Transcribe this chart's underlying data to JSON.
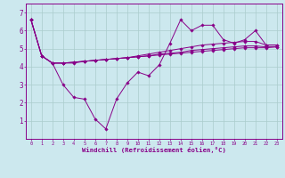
{
  "xlabel": "Windchill (Refroidissement éolien,°C)",
  "x": [
    0,
    1,
    2,
    3,
    4,
    5,
    6,
    7,
    8,
    9,
    10,
    11,
    12,
    13,
    14,
    15,
    16,
    17,
    18,
    19,
    20,
    21,
    22,
    23
  ],
  "line1": [
    6.6,
    4.6,
    4.2,
    3.0,
    2.3,
    2.2,
    1.1,
    0.55,
    2.2,
    3.1,
    3.7,
    3.5,
    4.1,
    5.3,
    6.6,
    6.0,
    6.3,
    6.3,
    5.5,
    5.3,
    5.5,
    6.0,
    5.2,
    5.2
  ],
  "line2": [
    6.6,
    4.6,
    4.2,
    4.2,
    4.2,
    4.3,
    4.35,
    4.4,
    4.45,
    4.5,
    4.6,
    4.7,
    4.8,
    4.9,
    5.0,
    5.1,
    5.2,
    5.25,
    5.3,
    5.35,
    5.4,
    5.4,
    5.2,
    5.2
  ],
  "line3": [
    6.6,
    4.6,
    4.2,
    4.2,
    4.25,
    4.3,
    4.35,
    4.4,
    4.45,
    4.5,
    4.55,
    4.6,
    4.7,
    4.75,
    4.8,
    4.9,
    4.95,
    5.0,
    5.05,
    5.1,
    5.15,
    5.15,
    5.1,
    5.1
  ],
  "line4": [
    6.6,
    4.6,
    4.2,
    4.2,
    4.25,
    4.3,
    4.35,
    4.4,
    4.45,
    4.5,
    4.55,
    4.6,
    4.65,
    4.7,
    4.75,
    4.8,
    4.85,
    4.9,
    4.95,
    5.0,
    5.05,
    5.05,
    5.05,
    5.1
  ],
  "line_color": "#880088",
  "bg_color": "#cce8ee",
  "grid_color": "#aacccc",
  "ylim": [
    0,
    7.5
  ],
  "xlim": [
    -0.5,
    23.5
  ],
  "yticks": [
    1,
    2,
    3,
    4,
    5,
    6,
    7
  ]
}
